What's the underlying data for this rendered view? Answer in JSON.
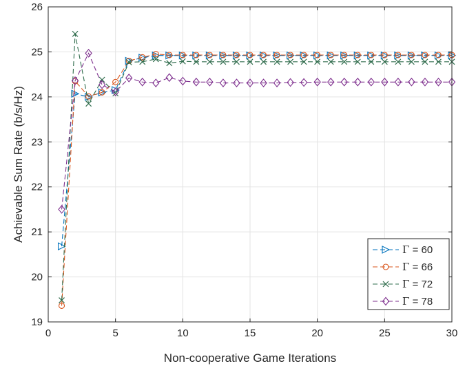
{
  "chart_data": {
    "type": "line",
    "xlabel": "Non-cooperative Game Iterations",
    "ylabel": "Achievable Sum Rate (b/s/Hz)",
    "xlim": [
      0,
      30
    ],
    "ylim": [
      19,
      26
    ],
    "xticks": [
      0,
      5,
      10,
      15,
      20,
      25,
      30
    ],
    "yticks": [
      19,
      20,
      21,
      22,
      23,
      24,
      25,
      26
    ],
    "grid": true,
    "legend_position": "bottom-right",
    "x": [
      1,
      2,
      3,
      4,
      5,
      6,
      7,
      8,
      9,
      10,
      11,
      12,
      13,
      14,
      15,
      16,
      17,
      18,
      19,
      20,
      21,
      22,
      23,
      24,
      25,
      26,
      27,
      28,
      29,
      30
    ],
    "series": [
      {
        "name": "Γ = 60",
        "legend_symbol": "Γ",
        "legend_value": "= 60",
        "color": "#0072BD",
        "marker": "triangle-right",
        "values": [
          20.68,
          24.07,
          24.0,
          24.1,
          24.15,
          24.8,
          24.87,
          24.92,
          24.92,
          24.92,
          24.92,
          24.92,
          24.92,
          24.92,
          24.92,
          24.92,
          24.92,
          24.92,
          24.92,
          24.92,
          24.92,
          24.92,
          24.92,
          24.92,
          24.92,
          24.92,
          24.92,
          24.92,
          24.92,
          24.92
        ]
      },
      {
        "name": "Γ = 66",
        "legend_symbol": "Γ",
        "legend_value": "= 66",
        "color": "#D95319",
        "marker": "circle",
        "values": [
          19.36,
          24.35,
          24.01,
          24.1,
          24.33,
          24.8,
          24.88,
          24.95,
          24.93,
          24.93,
          24.93,
          24.93,
          24.93,
          24.93,
          24.93,
          24.93,
          24.93,
          24.93,
          24.93,
          24.93,
          24.93,
          24.93,
          24.93,
          24.93,
          24.93,
          24.93,
          24.93,
          24.93,
          24.93,
          24.93
        ]
      },
      {
        "name": "Γ = 72",
        "legend_symbol": "Γ",
        "legend_value": "= 72",
        "color": "#2E6B4B",
        "marker": "x",
        "values": [
          19.48,
          25.4,
          23.85,
          24.38,
          24.08,
          24.77,
          24.78,
          24.84,
          24.75,
          24.79,
          24.78,
          24.78,
          24.78,
          24.78,
          24.78,
          24.78,
          24.78,
          24.78,
          24.78,
          24.78,
          24.78,
          24.78,
          24.78,
          24.78,
          24.78,
          24.78,
          24.78,
          24.78,
          24.78,
          24.78
        ]
      },
      {
        "name": "Γ = 78",
        "legend_symbol": "Γ",
        "legend_value": "= 78",
        "color": "#7E2F8E",
        "marker": "diamond",
        "values": [
          21.5,
          24.36,
          24.97,
          24.27,
          24.11,
          24.42,
          24.33,
          24.31,
          24.43,
          24.35,
          24.33,
          24.33,
          24.31,
          24.31,
          24.31,
          24.31,
          24.31,
          24.32,
          24.32,
          24.33,
          24.33,
          24.33,
          24.33,
          24.33,
          24.33,
          24.33,
          24.33,
          24.33,
          24.33,
          24.33
        ]
      }
    ]
  }
}
